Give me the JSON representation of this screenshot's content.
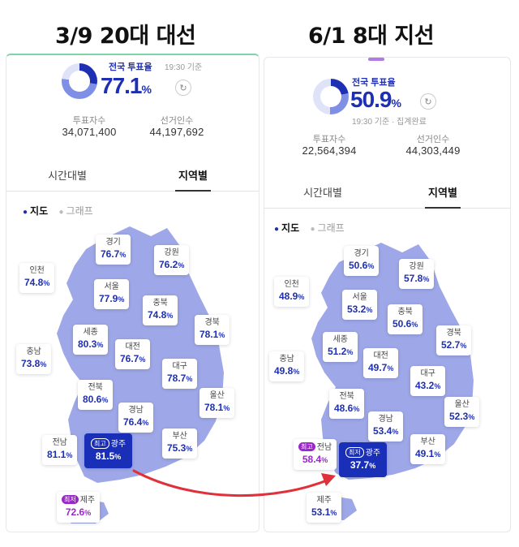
{
  "headings": {
    "left": "3/9 20대 대선",
    "right": "6/1 8대 지선"
  },
  "left": {
    "rate_label": "전국 투표율",
    "rate_time": "19:30 기준",
    "rate_value": "77.1",
    "rate_unit": "%",
    "rate_fraction": 0.771,
    "voters_label": "투표자수",
    "voters_value": "34,071,400",
    "electors_label": "선거인수",
    "electors_value": "44,197,692",
    "tabs": [
      "시간대별",
      "지역별"
    ],
    "view_map": "지도",
    "view_graph": "그래프",
    "regions": {
      "gyeonggi": {
        "name": "경기",
        "value": "76.7"
      },
      "gangwon": {
        "name": "강원",
        "value": "76.2"
      },
      "incheon": {
        "name": "인천",
        "value": "74.8"
      },
      "seoul": {
        "name": "서울",
        "value": "77.9"
      },
      "chungbuk": {
        "name": "충북",
        "value": "74.8"
      },
      "gyeongbuk": {
        "name": "경북",
        "value": "78.1"
      },
      "sejong": {
        "name": "세종",
        "value": "80.3"
      },
      "chungnam": {
        "name": "충남",
        "value": "73.8"
      },
      "daejeon": {
        "name": "대전",
        "value": "76.7"
      },
      "daegu": {
        "name": "대구",
        "value": "78.7"
      },
      "jeonbuk": {
        "name": "전북",
        "value": "80.6"
      },
      "ulsan": {
        "name": "울산",
        "value": "78.1"
      },
      "gyeongnam": {
        "name": "경남",
        "value": "76.4"
      },
      "jeonnam": {
        "name": "전남",
        "value": "81.1"
      },
      "gwangju": {
        "name": "광주",
        "value": "81.5",
        "tag": "최고"
      },
      "busan": {
        "name": "부산",
        "value": "75.3"
      },
      "jeju": {
        "name": "제주",
        "value": "72.6",
        "tag": "최저"
      }
    }
  },
  "right": {
    "rate_label": "전국 투표율",
    "rate_time": "19:30 기준 · 집계완료",
    "rate_value": "50.9",
    "rate_unit": "%",
    "rate_fraction": 0.509,
    "voters_label": "투표자수",
    "voters_value": "22,564,394",
    "electors_label": "선거인수",
    "electors_value": "44,303,449",
    "tabs": [
      "시간대별",
      "지역별"
    ],
    "view_map": "지도",
    "view_graph": "그래프",
    "regions": {
      "gyeonggi": {
        "name": "경기",
        "value": "50.6"
      },
      "gangwon": {
        "name": "강원",
        "value": "57.8"
      },
      "incheon": {
        "name": "인천",
        "value": "48.9"
      },
      "seoul": {
        "name": "서울",
        "value": "53.2"
      },
      "chungbuk": {
        "name": "충북",
        "value": "50.6"
      },
      "gyeongbuk": {
        "name": "경북",
        "value": "52.7"
      },
      "sejong": {
        "name": "세종",
        "value": "51.2"
      },
      "chungnam": {
        "name": "충남",
        "value": "49.8"
      },
      "daejeon": {
        "name": "대전",
        "value": "49.7"
      },
      "daegu": {
        "name": "대구",
        "value": "43.2"
      },
      "jeonbuk": {
        "name": "전북",
        "value": "48.6"
      },
      "ulsan": {
        "name": "울산",
        "value": "52.3"
      },
      "gyeongnam": {
        "name": "경남",
        "value": "53.4"
      },
      "jeonnam": {
        "name": "전남",
        "value": "58.4",
        "tag": "최고"
      },
      "gwangju": {
        "name": "광주",
        "value": "37.7",
        "tag": "최저"
      },
      "busan": {
        "name": "부산",
        "value": "49.1"
      },
      "jeju": {
        "name": "제주",
        "value": "53.1"
      }
    }
  },
  "colors": {
    "accent": "#1e2fb4",
    "highest_bg": "#1a2fb8",
    "lowest": "#9b27c9",
    "map_fill": "#9ea8e8",
    "arrow": "#e0313a"
  },
  "icons": {
    "refresh": "refresh-icon",
    "arrow": "red-curved-arrow"
  }
}
